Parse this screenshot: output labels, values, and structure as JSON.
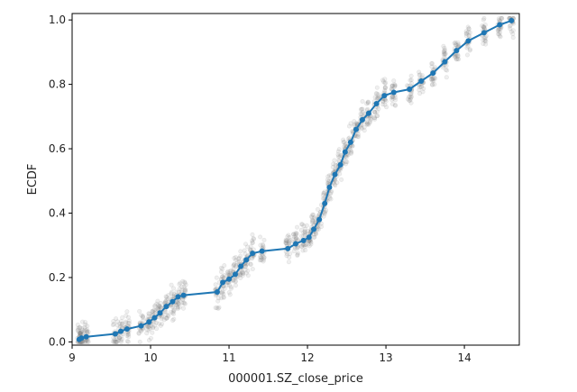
{
  "chart_data": {
    "type": "scatter",
    "xlabel": "000001.SZ_close_price",
    "ylabel": "ECDF",
    "xlim": [
      9.0,
      14.7
    ],
    "ylim": [
      -0.01,
      1.02
    ],
    "x_ticks": [
      9,
      10,
      11,
      12,
      13,
      14
    ],
    "y_ticks": [
      0.0,
      0.2,
      0.4,
      0.6,
      0.8,
      1.0
    ],
    "grid": false,
    "colors": {
      "ecdf_line": "#1f77b4",
      "bootstrap_points": "#808080",
      "axes": "#000000"
    },
    "series": [
      {
        "kind": "line-with-markers",
        "points": [
          [
            9.09,
            0.008
          ],
          [
            9.12,
            0.012
          ],
          [
            9.18,
            0.016
          ],
          [
            9.55,
            0.025
          ],
          [
            9.62,
            0.033
          ],
          [
            9.7,
            0.04
          ],
          [
            9.88,
            0.05
          ],
          [
            9.98,
            0.062
          ],
          [
            10.05,
            0.075
          ],
          [
            10.12,
            0.09
          ],
          [
            10.2,
            0.11
          ],
          [
            10.28,
            0.125
          ],
          [
            10.35,
            0.14
          ],
          [
            10.42,
            0.145
          ],
          [
            10.85,
            0.155
          ],
          [
            10.92,
            0.185
          ],
          [
            11.0,
            0.195
          ],
          [
            11.08,
            0.21
          ],
          [
            11.15,
            0.235
          ],
          [
            11.22,
            0.255
          ],
          [
            11.3,
            0.275
          ],
          [
            11.42,
            0.282
          ],
          [
            11.75,
            0.29
          ],
          [
            11.85,
            0.305
          ],
          [
            11.95,
            0.315
          ],
          [
            12.02,
            0.325
          ],
          [
            12.08,
            0.35
          ],
          [
            12.15,
            0.38
          ],
          [
            12.22,
            0.43
          ],
          [
            12.28,
            0.48
          ],
          [
            12.35,
            0.52
          ],
          [
            12.42,
            0.55
          ],
          [
            12.48,
            0.59
          ],
          [
            12.55,
            0.62
          ],
          [
            12.62,
            0.66
          ],
          [
            12.7,
            0.69
          ],
          [
            12.78,
            0.71
          ],
          [
            12.88,
            0.74
          ],
          [
            12.98,
            0.765
          ],
          [
            13.1,
            0.775
          ],
          [
            13.3,
            0.785
          ],
          [
            13.45,
            0.81
          ],
          [
            13.6,
            0.835
          ],
          [
            13.75,
            0.87
          ],
          [
            13.9,
            0.905
          ],
          [
            14.05,
            0.935
          ],
          [
            14.25,
            0.96
          ],
          [
            14.45,
            0.985
          ],
          [
            14.6,
            0.998
          ]
        ]
      }
    ]
  }
}
